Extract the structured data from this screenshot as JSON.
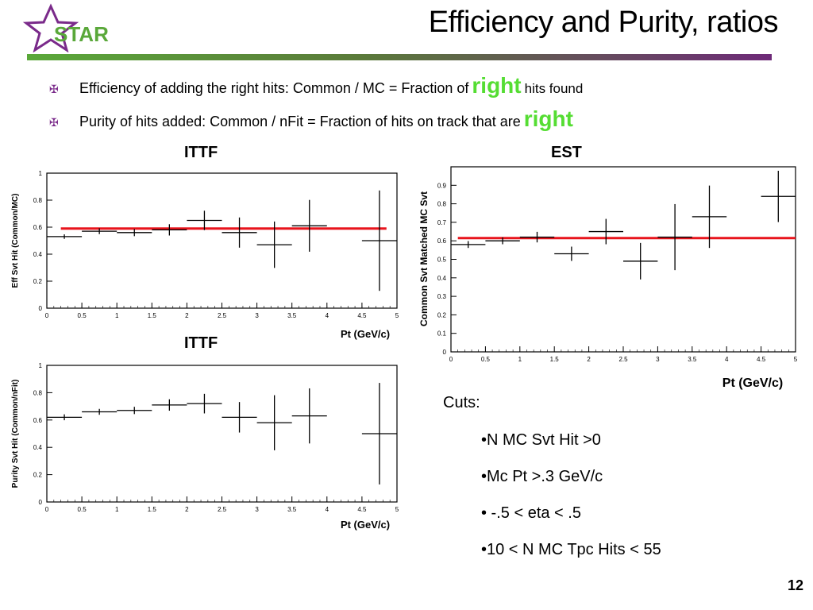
{
  "logo": {
    "text": "STAR"
  },
  "title": "Efficiency and Purity, ratios",
  "bullets": [
    {
      "before": "Efficiency of adding the right hits: Common / MC = Fraction of",
      "highlight": "right",
      "after": "hits found"
    },
    {
      "before": "Purity of hits added: Common / nFit = Fraction of hits on track that are",
      "highlight": "right",
      "after": ""
    }
  ],
  "cuts": {
    "heading": "Cuts:",
    "items": [
      "•N MC Svt Hit >0",
      "•Mc Pt >.3 GeV/c",
      "• -.5 < eta < .5",
      "•10 < N MC Tpc Hits < 55"
    ]
  },
  "page_number": "12",
  "colors": {
    "fit_line": "#e8141c",
    "highlight": "#55dd33",
    "bullet_mark": "#7a2a8a"
  },
  "chart_data": [
    {
      "type": "scatter",
      "title": "ITTF",
      "xlabel": "Pt (GeV/c)",
      "ylabel": "Eff Svt Hit (Common/MC)",
      "xlim": [
        0,
        5
      ],
      "ylim": [
        0,
        1
      ],
      "xticks": [
        "0",
        "0.5",
        "1",
        "1.5",
        "2",
        "2.5",
        "3",
        "3.5",
        "4",
        "4.5",
        "5"
      ],
      "yticks": [
        "0",
        "0.2",
        "0.4",
        "0.6",
        "0.8",
        "1"
      ],
      "points": [
        {
          "x": 0.25,
          "y": 0.53,
          "xerr": 0.25,
          "yerr": 0.005
        },
        {
          "x": 0.75,
          "y": 0.57,
          "xerr": 0.25,
          "yerr": 0.01
        },
        {
          "x": 1.25,
          "y": 0.56,
          "xerr": 0.25,
          "yerr": 0.015
        },
        {
          "x": 1.75,
          "y": 0.58,
          "xerr": 0.25,
          "yerr": 0.03
        },
        {
          "x": 2.25,
          "y": 0.65,
          "xerr": 0.25,
          "yerr": 0.06
        },
        {
          "x": 2.75,
          "y": 0.56,
          "xerr": 0.25,
          "yerr": 0.1
        },
        {
          "x": 3.25,
          "y": 0.47,
          "xerr": 0.25,
          "yerr": 0.16
        },
        {
          "x": 3.75,
          "y": 0.61,
          "xerr": 0.25,
          "yerr": 0.18
        },
        {
          "x": 4.75,
          "y": 0.5,
          "xerr": 0.25,
          "yerr": 0.36
        }
      ],
      "fit": {
        "x0": 0.2,
        "x1": 4.85,
        "y": 0.59
      }
    },
    {
      "type": "scatter",
      "title": "ITTF",
      "xlabel": "Pt (GeV/c)",
      "ylabel": "Purity Svt Hit (Common/nFit)",
      "xlim": [
        0,
        5
      ],
      "ylim": [
        0,
        1
      ],
      "xticks": [
        "0",
        "0.5",
        "1",
        "1.5",
        "2",
        "2.5",
        "3",
        "3.5",
        "4",
        "4.5",
        "5"
      ],
      "yticks": [
        "0",
        "0.2",
        "0.4",
        "0.6",
        "0.8",
        "1"
      ],
      "points": [
        {
          "x": 0.25,
          "y": 0.62,
          "xerr": 0.25,
          "yerr": 0.01
        },
        {
          "x": 0.75,
          "y": 0.66,
          "xerr": 0.25,
          "yerr": 0.01
        },
        {
          "x": 1.25,
          "y": 0.67,
          "xerr": 0.25,
          "yerr": 0.015
        },
        {
          "x": 1.75,
          "y": 0.71,
          "xerr": 0.25,
          "yerr": 0.03
        },
        {
          "x": 2.25,
          "y": 0.72,
          "xerr": 0.25,
          "yerr": 0.06
        },
        {
          "x": 2.75,
          "y": 0.62,
          "xerr": 0.25,
          "yerr": 0.1
        },
        {
          "x": 3.25,
          "y": 0.58,
          "xerr": 0.25,
          "yerr": 0.19
        },
        {
          "x": 3.75,
          "y": 0.63,
          "xerr": 0.25,
          "yerr": 0.19
        },
        {
          "x": 4.75,
          "y": 0.5,
          "xerr": 0.25,
          "yerr": 0.36
        }
      ]
    },
    {
      "type": "scatter",
      "title": "EST",
      "xlabel": "Pt (GeV/c)",
      "ylabel": "Common Svt Matched MC Svt",
      "xlim": [
        0,
        5
      ],
      "ylim": [
        0,
        1
      ],
      "xticks": [
        "0",
        "0.5",
        "1",
        "1.5",
        "2",
        "2.5",
        "3",
        "3.5",
        "4",
        "4.5",
        "5"
      ],
      "yticks": [
        "0",
        "0.1",
        "0.2",
        "0.3",
        "0.4",
        "0.5",
        "0.6",
        "0.7",
        "0.8",
        "0.9"
      ],
      "points": [
        {
          "x": 0.25,
          "y": 0.58,
          "xerr": 0.25,
          "yerr": 0.01
        },
        {
          "x": 0.75,
          "y": 0.6,
          "xerr": 0.25,
          "yerr": 0.01
        },
        {
          "x": 1.25,
          "y": 0.62,
          "xerr": 0.25,
          "yerr": 0.02
        },
        {
          "x": 1.75,
          "y": 0.53,
          "xerr": 0.25,
          "yerr": 0.03
        },
        {
          "x": 2.25,
          "y": 0.65,
          "xerr": 0.25,
          "yerr": 0.06
        },
        {
          "x": 2.75,
          "y": 0.49,
          "xerr": 0.25,
          "yerr": 0.09
        },
        {
          "x": 3.25,
          "y": 0.62,
          "xerr": 0.25,
          "yerr": 0.17
        },
        {
          "x": 3.75,
          "y": 0.73,
          "xerr": 0.25,
          "yerr": 0.16
        },
        {
          "x": 4.75,
          "y": 0.84,
          "xerr": 0.25,
          "yerr": 0.13
        }
      ],
      "fit": {
        "x0": 0.1,
        "x1": 5.0,
        "y": 0.615
      }
    }
  ]
}
